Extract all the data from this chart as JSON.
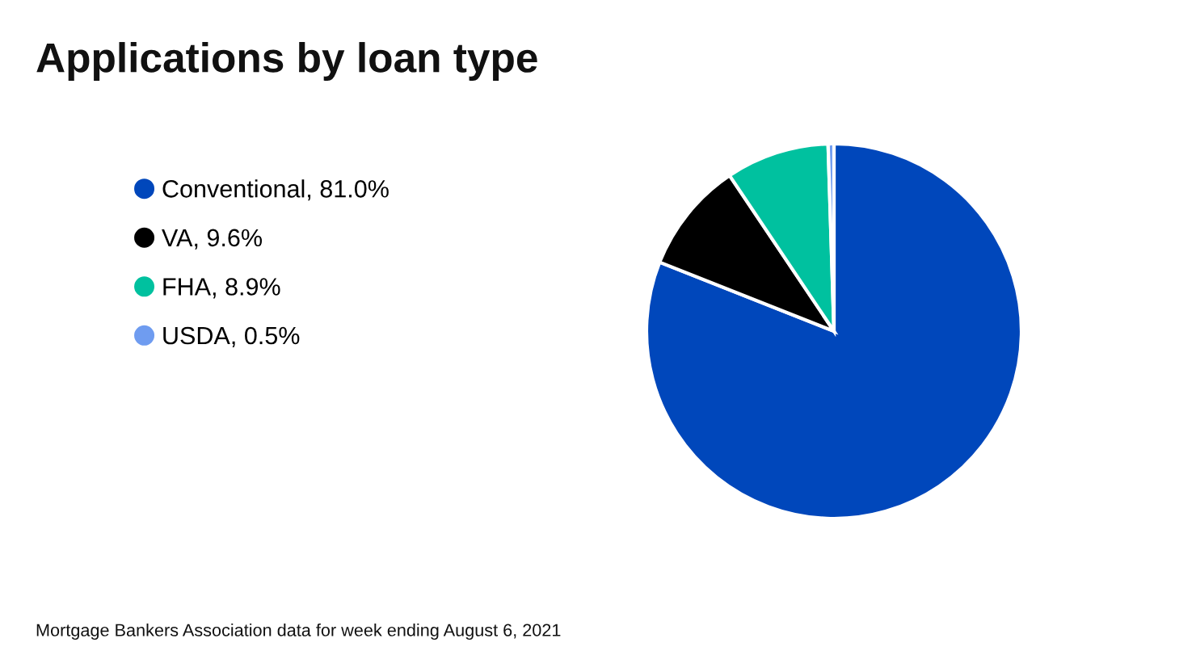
{
  "chart_data": {
    "type": "pie",
    "title": "Applications by loan type",
    "categories": [
      "Conventional, 81.0%",
      "VA, 9.6%",
      "FHA, 8.9%",
      "USDA, 0.5%"
    ],
    "values": [
      81.0,
      9.6,
      8.9,
      0.5
    ],
    "colors": [
      "#0047bb",
      "#000000",
      "#00c19f",
      "#6f9cf0"
    ],
    "legend": "left",
    "annotations": [
      "Mortgage Bankers Association data for week ending August 6, 2021"
    ]
  }
}
